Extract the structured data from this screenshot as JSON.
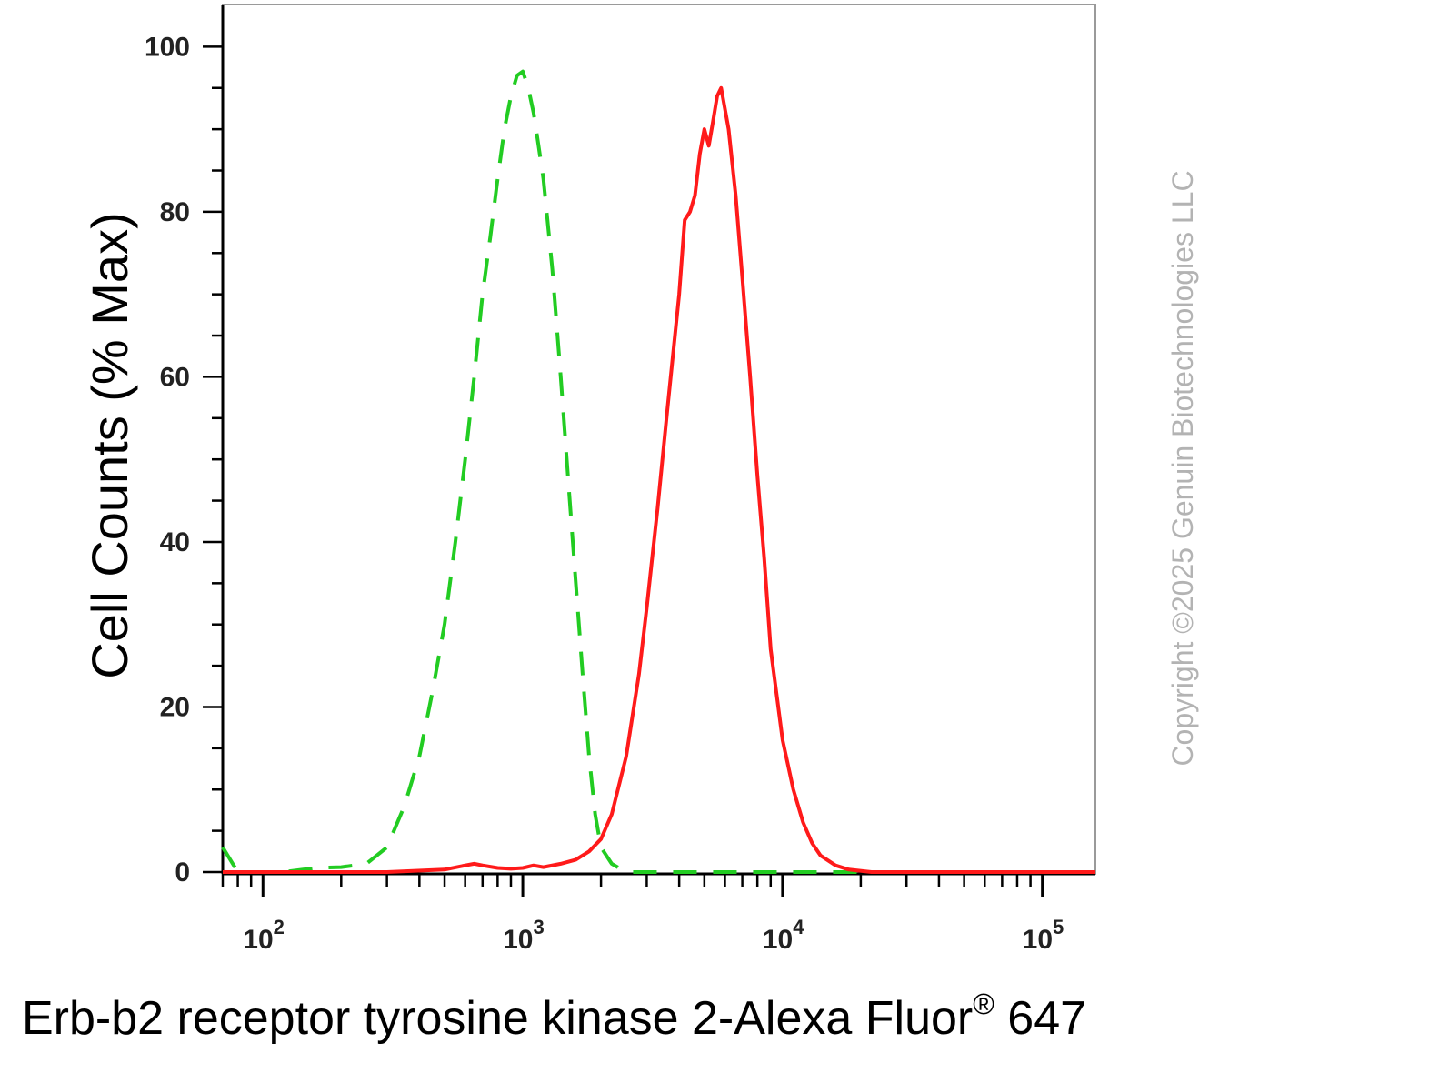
{
  "chart_data": {
    "type": "line",
    "title": "",
    "ylabel": "Cell Counts (% Max)",
    "xlabel_main": "Erb-b2 receptor tyrosine kinase 2-Alexa Fluor",
    "xlabel_sup": "®",
    "xlabel_tail": " 647",
    "watermark": "Copyright ©2025 Genuin Biotechnologies LLC",
    "x_scale": "log",
    "xlim": [
      70,
      160000
    ],
    "ylim": [
      0,
      105
    ],
    "y_ticks": [
      "0",
      "20",
      "40",
      "60",
      "80",
      "100"
    ],
    "x_tick_labels": [
      {
        "base": "10",
        "exp": "2",
        "value": 100
      },
      {
        "base": "10",
        "exp": "3",
        "value": 1000
      },
      {
        "base": "10",
        "exp": "4",
        "value": 10000
      },
      {
        "base": "10",
        "exp": "5",
        "value": 100000
      }
    ],
    "grid": false,
    "series": [
      {
        "color": "#22cc22",
        "dash": true,
        "x": [
          70,
          80,
          90,
          120,
          160,
          200,
          250,
          300,
          350,
          400,
          450,
          500,
          550,
          600,
          650,
          700,
          750,
          800,
          850,
          900,
          950,
          1000,
          1050,
          1100,
          1150,
          1200,
          1300,
          1400,
          1500,
          1600,
          1700,
          1800,
          1900,
          2000,
          2200,
          2500,
          3000,
          5000,
          10000,
          160000
        ],
        "y": [
          3,
          0,
          0,
          0,
          0.5,
          0.6,
          1,
          3,
          8,
          14,
          22,
          30,
          40,
          50,
          60,
          70,
          77,
          84,
          90,
          94,
          96.5,
          97,
          95,
          92,
          88,
          84,
          73,
          60,
          47,
          35,
          24,
          14,
          7,
          3,
          1,
          0,
          0,
          0,
          0,
          0
        ]
      },
      {
        "color": "#ff1a1a",
        "dash": false,
        "x": [
          70,
          300,
          500,
          600,
          650,
          700,
          800,
          900,
          1000,
          1100,
          1200,
          1400,
          1600,
          1800,
          2000,
          2200,
          2500,
          2800,
          3000,
          3300,
          3600,
          4000,
          4200,
          4400,
          4600,
          4800,
          5000,
          5200,
          5400,
          5600,
          5800,
          6200,
          6600,
          7000,
          7500,
          8000,
          8500,
          9000,
          10000,
          11000,
          12000,
          13000,
          14000,
          16000,
          18000,
          22000,
          30000,
          160000
        ],
        "y": [
          0,
          0,
          0.3,
          0.8,
          1,
          0.8,
          0.5,
          0.4,
          0.5,
          0.8,
          0.6,
          1,
          1.5,
          2.5,
          4,
          7,
          14,
          24,
          32,
          44,
          56,
          70,
          79,
          80,
          82,
          87,
          90,
          88,
          91,
          94,
          95,
          90,
          82,
          72,
          60,
          48,
          38,
          27,
          16,
          10,
          6,
          3.5,
          2,
          0.8,
          0.3,
          0,
          0,
          0
        ]
      }
    ]
  }
}
